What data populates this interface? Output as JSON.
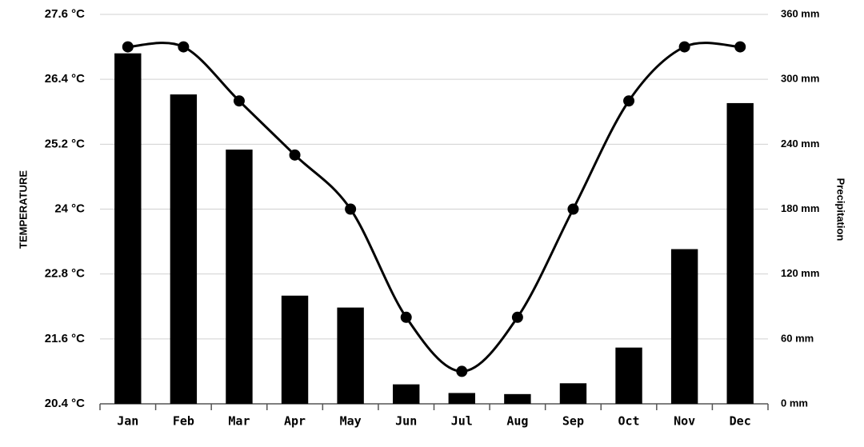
{
  "chart_data": {
    "type": "climate",
    "y_label": "TEMPERATURE",
    "y2_label": "Precipitation",
    "categories": [
      "Jan",
      "Feb",
      "Mar",
      "Apr",
      "May",
      "Jun",
      "Jul",
      "Aug",
      "Sep",
      "Oct",
      "Nov",
      "Dec"
    ],
    "series": [
      {
        "type": "bar",
        "axis": "y2",
        "color": "#000000",
        "values": [
          324,
          286,
          235,
          100,
          89,
          18,
          10,
          9,
          19,
          52,
          143,
          278
        ]
      },
      {
        "type": "line",
        "axis": "y",
        "color": "#000000",
        "values": [
          27.0,
          27.0,
          26.0,
          25.0,
          24.0,
          22.0,
          21.0,
          22.0,
          24.0,
          26.0,
          27.0,
          27.0
        ]
      }
    ],
    "ylim": [
      20.4,
      27.6
    ],
    "yticks": [
      {
        "value": 20.4,
        "label": "20.4 °C"
      },
      {
        "value": 21.6,
        "label": "21.6 °C"
      },
      {
        "value": 22.8,
        "label": "22.8 °C"
      },
      {
        "value": 24,
        "label": "24 °C"
      },
      {
        "value": 25.2,
        "label": "25.2 °C"
      },
      {
        "value": 26.4,
        "label": "26.4 °C"
      },
      {
        "value": 27.6,
        "label": "27.6 °C"
      }
    ],
    "y2lim": [
      0,
      360
    ],
    "y2ticks": [
      {
        "value": 0,
        "label": "0 mm"
      },
      {
        "value": 60,
        "label": "60 mm"
      },
      {
        "value": 120,
        "label": "120 mm"
      },
      {
        "value": 180,
        "label": "180 mm"
      },
      {
        "value": 240,
        "label": "240 mm"
      },
      {
        "value": 300,
        "label": "300 mm"
      },
      {
        "value": 360,
        "label": "360 mm"
      }
    ],
    "grid": true
  }
}
